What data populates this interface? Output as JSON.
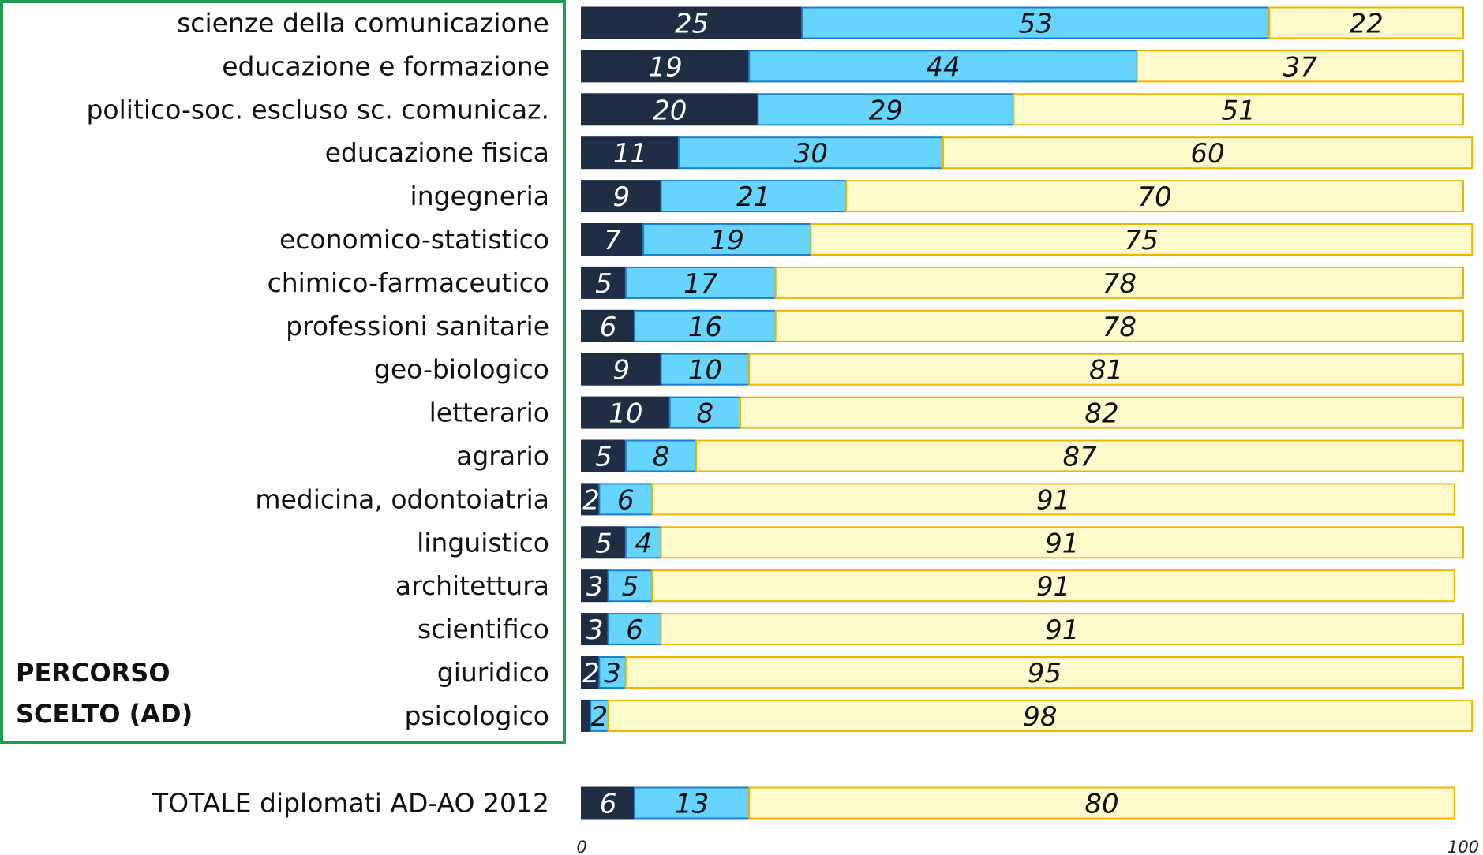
{
  "chart_data": {
    "type": "stacked-barh",
    "categories": [
      "scienze della comunicazione",
      "educazione e formazione",
      "politico-soc. escluso sc. comunicaz.",
      "educazione fisica",
      "ingegneria",
      "economico-statistico",
      "chimico-farmaceutico",
      "professioni sanitarie",
      "geo-biologico",
      "letterario",
      "agrario",
      "medicina, odontoiatria",
      "linguistico",
      "architettura",
      "scientifico",
      "giuridico",
      "psicologico",
      "TOTALE diplomati AD-AO 2012"
    ],
    "series": [
      {
        "color": "#1f2d45",
        "values": [
          25,
          19,
          20,
          11,
          9,
          7,
          5,
          6,
          9,
          10,
          5,
          2,
          5,
          3,
          3,
          2,
          1,
          6
        ]
      },
      {
        "color": "#66d4fc",
        "values": [
          53,
          44,
          29,
          30,
          21,
          19,
          17,
          16,
          10,
          8,
          8,
          6,
          4,
          5,
          6,
          3,
          2,
          13
        ]
      },
      {
        "color": "#fffacc",
        "values": [
          22,
          37,
          51,
          60,
          70,
          75,
          78,
          78,
          81,
          82,
          87,
          91,
          91,
          91,
          91,
          95,
          98,
          80
        ]
      }
    ],
    "value_labels": [
      null,
      null,
      null,
      null,
      null,
      null,
      null,
      null,
      null,
      null,
      null,
      null,
      null,
      null,
      null,
      null,
      [
        null,
        "2",
        "98"
      ],
      null
    ],
    "annotation": "PERCORSO SCELTO (AD)",
    "xlim": [
      0,
      100
    ],
    "xticks": [
      0,
      100
    ]
  }
}
